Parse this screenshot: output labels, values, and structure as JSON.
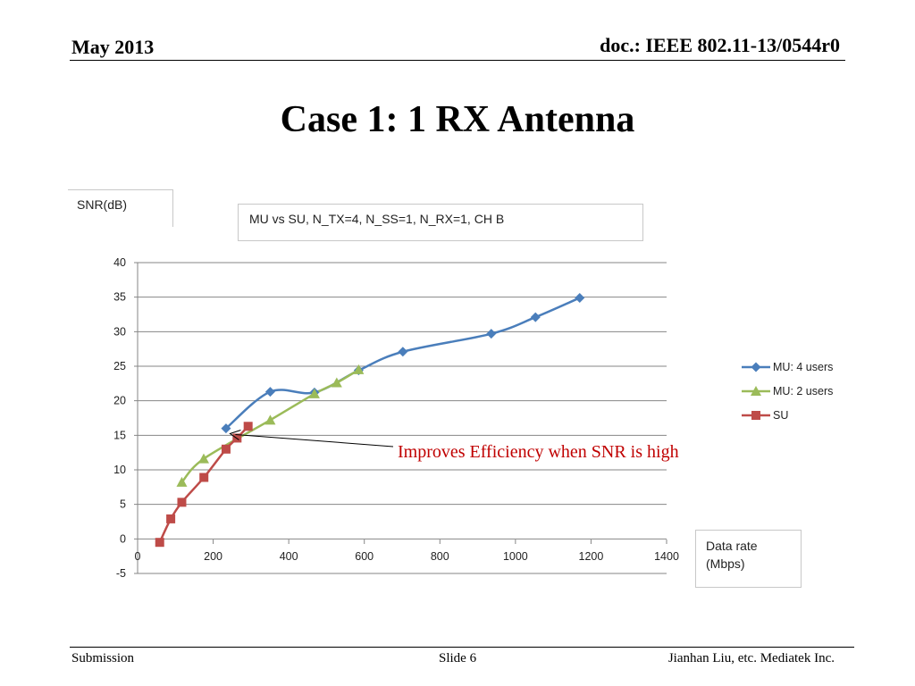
{
  "header": {
    "date": "May 2013",
    "doc_id": "doc.: IEEE 802.11-13/0544r0"
  },
  "slide": {
    "title": "Case 1: 1 RX Antenna"
  },
  "footer": {
    "left": "Submission",
    "center": "Slide 6",
    "right": "Jianhan Liu, etc. Mediatek Inc."
  },
  "colors": {
    "mu4": "#4a7ebb",
    "mu2": "#9bbb59",
    "su": "#be4b48",
    "grid": "#868686",
    "annotation": "#c00000"
  },
  "chart_data": {
    "type": "line",
    "title": "MU vs SU, N_TX=4, N_SS=1, N_RX=1, CH B",
    "ylabel": "SNR(dB)",
    "xlabel": "Data rate\n(Mbps)",
    "xlim": [
      0,
      1400
    ],
    "ylim": [
      -5,
      40
    ],
    "xticks": [
      0,
      200,
      400,
      600,
      800,
      1000,
      1200,
      1400
    ],
    "yticks": [
      -5,
      0,
      5,
      10,
      15,
      20,
      25,
      30,
      35,
      40
    ],
    "grid": true,
    "legend_position": "right",
    "annotation": {
      "text": "Improves Efficiency when SNR is high",
      "point": [
        325,
        15.5
      ]
    },
    "series": [
      {
        "name": "MU: 4 users",
        "marker": "diamond",
        "points": [
          [
            234,
            16
          ],
          [
            351,
            21.3
          ],
          [
            468,
            21.2
          ],
          [
            585,
            24.4
          ],
          [
            702,
            27.1
          ],
          [
            936,
            29.7
          ],
          [
            1053,
            32.1
          ],
          [
            1170,
            34.9
          ]
        ]
      },
      {
        "name": "MU: 2 users",
        "marker": "triangle",
        "points": [
          [
            117,
            8.2
          ],
          [
            175,
            11.6
          ],
          [
            351,
            17.2
          ],
          [
            468,
            21
          ],
          [
            527,
            22.6
          ],
          [
            585,
            24.5
          ]
        ]
      },
      {
        "name": "SU",
        "marker": "square",
        "points": [
          [
            58.5,
            -0.5
          ],
          [
            87.75,
            2.9
          ],
          [
            117,
            5.3
          ],
          [
            175.5,
            8.9
          ],
          [
            234,
            13
          ],
          [
            263.25,
            14.6
          ],
          [
            292.5,
            16.3
          ]
        ]
      }
    ]
  }
}
